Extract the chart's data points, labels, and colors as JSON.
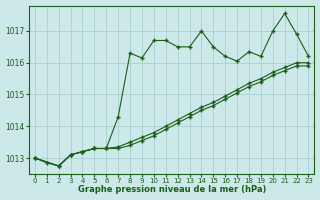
{
  "xlabel": "Graphe pression niveau de la mer (hPa)",
  "xlim": [
    -0.5,
    23.5
  ],
  "ylim": [
    1012.5,
    1017.8
  ],
  "yticks": [
    1013,
    1014,
    1015,
    1016,
    1017
  ],
  "xticks": [
    0,
    1,
    2,
    3,
    4,
    5,
    6,
    7,
    8,
    9,
    10,
    11,
    12,
    13,
    14,
    15,
    16,
    17,
    18,
    19,
    20,
    21,
    22,
    23
  ],
  "background_color": "#cce8e8",
  "grid_color": "#aad0d0",
  "line_color": "#1a5e1a",
  "series1_x": [
    0,
    1,
    2,
    3,
    4,
    5,
    6,
    7,
    8,
    9,
    10,
    11,
    12,
    13,
    14,
    15,
    16,
    17,
    18,
    19,
    20,
    21,
    22,
    23
  ],
  "series1_y": [
    1013.0,
    1012.85,
    1012.75,
    1013.1,
    1013.2,
    1013.3,
    1013.3,
    1014.3,
    1016.3,
    1016.15,
    1016.7,
    1016.7,
    1016.5,
    1016.5,
    1017.0,
    1016.5,
    1016.2,
    1016.05,
    1016.35,
    1016.2,
    1017.0,
    1017.55,
    1016.9,
    1016.2
  ],
  "series2_x": [
    0,
    2,
    3,
    4,
    5,
    6,
    7,
    8,
    9,
    10,
    11,
    12,
    13,
    14,
    15,
    16,
    17,
    18,
    19,
    20,
    21,
    22,
    23
  ],
  "series2_y": [
    1013.0,
    1012.75,
    1013.1,
    1013.2,
    1013.3,
    1013.3,
    1013.35,
    1013.5,
    1013.65,
    1013.8,
    1014.0,
    1014.2,
    1014.4,
    1014.6,
    1014.75,
    1014.95,
    1015.15,
    1015.35,
    1015.5,
    1015.7,
    1015.85,
    1016.0,
    1016.0
  ],
  "series3_x": [
    0,
    2,
    3,
    4,
    5,
    6,
    7,
    8,
    9,
    10,
    11,
    12,
    13,
    14,
    15,
    16,
    17,
    18,
    19,
    20,
    21,
    22,
    23
  ],
  "series3_y": [
    1013.0,
    1012.75,
    1013.1,
    1013.2,
    1013.3,
    1013.3,
    1013.3,
    1013.4,
    1013.55,
    1013.7,
    1013.9,
    1014.1,
    1014.3,
    1014.5,
    1014.65,
    1014.85,
    1015.05,
    1015.25,
    1015.4,
    1015.6,
    1015.75,
    1015.9,
    1015.9
  ]
}
